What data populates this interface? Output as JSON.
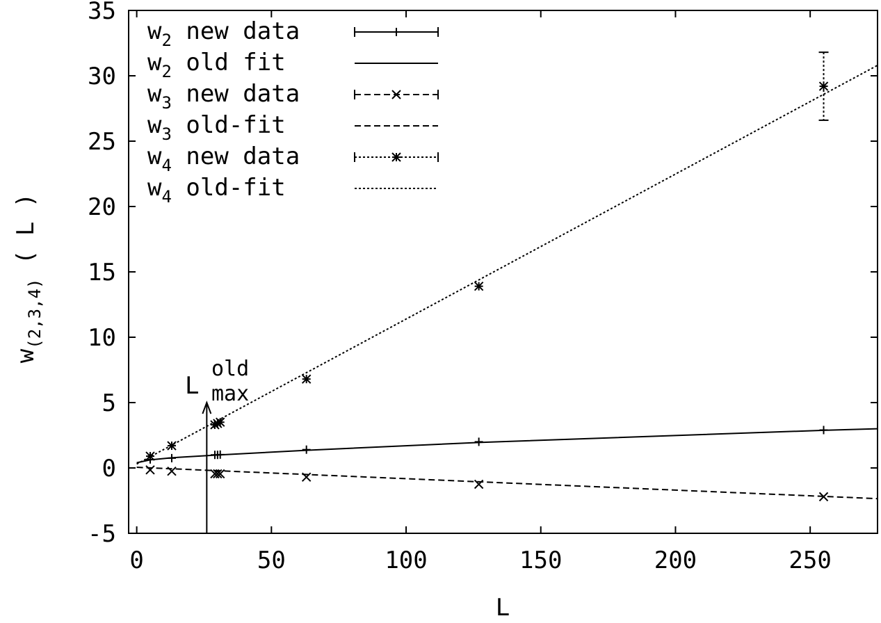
{
  "chart_data": {
    "type": "line",
    "title": "",
    "xlabel": "L",
    "ylabel": "w(2,3,4)( L )",
    "xlim": [
      -3,
      275
    ],
    "ylim": [
      -5,
      35
    ],
    "xticks": [
      0,
      50,
      100,
      150,
      200,
      250
    ],
    "yticks": [
      -5,
      0,
      5,
      10,
      15,
      20,
      25,
      30,
      35
    ],
    "xtick_labels": [
      "0",
      "50",
      "100",
      "150",
      "200",
      "250"
    ],
    "ytick_labels": [
      "-5",
      "0",
      "5",
      "10",
      "15",
      "20",
      "25",
      "30",
      "35"
    ],
    "grid": false,
    "legend_position": "top-left",
    "series": [
      {
        "name": "w2 new data",
        "kind": "points",
        "marker": "plus",
        "dash": "solid",
        "x": [
          5,
          13,
          29,
          30,
          31,
          63,
          127,
          255
        ],
        "y": [
          0.65,
          0.75,
          1.0,
          1.0,
          1.02,
          1.4,
          2.0,
          2.9
        ],
        "err": [
          0.05,
          0.05,
          0.05,
          0.05,
          0.05,
          0.05,
          0.05,
          0.1
        ]
      },
      {
        "name": "w2 old fit",
        "kind": "fit",
        "dash": "solid",
        "x": [
          0,
          5,
          13,
          29,
          63,
          127,
          255,
          275
        ],
        "y": [
          0.4,
          0.62,
          0.78,
          0.98,
          1.35,
          1.95,
          2.88,
          3.0
        ]
      },
      {
        "name": "w3 new data",
        "kind": "points",
        "marker": "cross",
        "dash": "dashed",
        "x": [
          5,
          13,
          29,
          30,
          31,
          63,
          127,
          255
        ],
        "y": [
          -0.15,
          -0.25,
          -0.45,
          -0.45,
          -0.45,
          -0.7,
          -1.25,
          -2.2
        ],
        "err": [
          0.05,
          0.05,
          0.05,
          0.05,
          0.05,
          0.05,
          0.05,
          0.1
        ]
      },
      {
        "name": "w3 old-fit",
        "kind": "fit",
        "dash": "dashed",
        "x": [
          0,
          275
        ],
        "y": [
          0.05,
          -2.35
        ]
      },
      {
        "name": "w4 new data",
        "kind": "points",
        "marker": "star",
        "dash": "dotted",
        "x": [
          5,
          13,
          29,
          30,
          31,
          63,
          127,
          255
        ],
        "y": [
          0.9,
          1.7,
          3.3,
          3.4,
          3.5,
          6.8,
          13.9,
          29.2
        ],
        "err": [
          0.1,
          0.1,
          0.1,
          0.1,
          0.1,
          0.1,
          0.2,
          2.6
        ]
      },
      {
        "name": "w4 old-fit",
        "kind": "fit",
        "dash": "dotted",
        "x": [
          0,
          275
        ],
        "y": [
          0.3,
          30.8
        ]
      }
    ],
    "legend": [
      {
        "base": "w",
        "sub": "2",
        "text": "new data"
      },
      {
        "base": "w",
        "sub": "2",
        "text": "old fit"
      },
      {
        "base": "w",
        "sub": "3",
        "text": "new data"
      },
      {
        "base": "w",
        "sub": "3",
        "text": "old-fit"
      },
      {
        "base": "w",
        "sub": "4",
        "text": "new data"
      },
      {
        "base": "w",
        "sub": "4",
        "text": "old-fit"
      }
    ],
    "ylabel_parts": {
      "base": "w",
      "sub": "(2,3,4)",
      "rest": "( L )"
    },
    "annotation": {
      "base": "L",
      "sup": "old",
      "sub": "max",
      "x": 26,
      "y_from": -5,
      "y_to": 5
    }
  }
}
